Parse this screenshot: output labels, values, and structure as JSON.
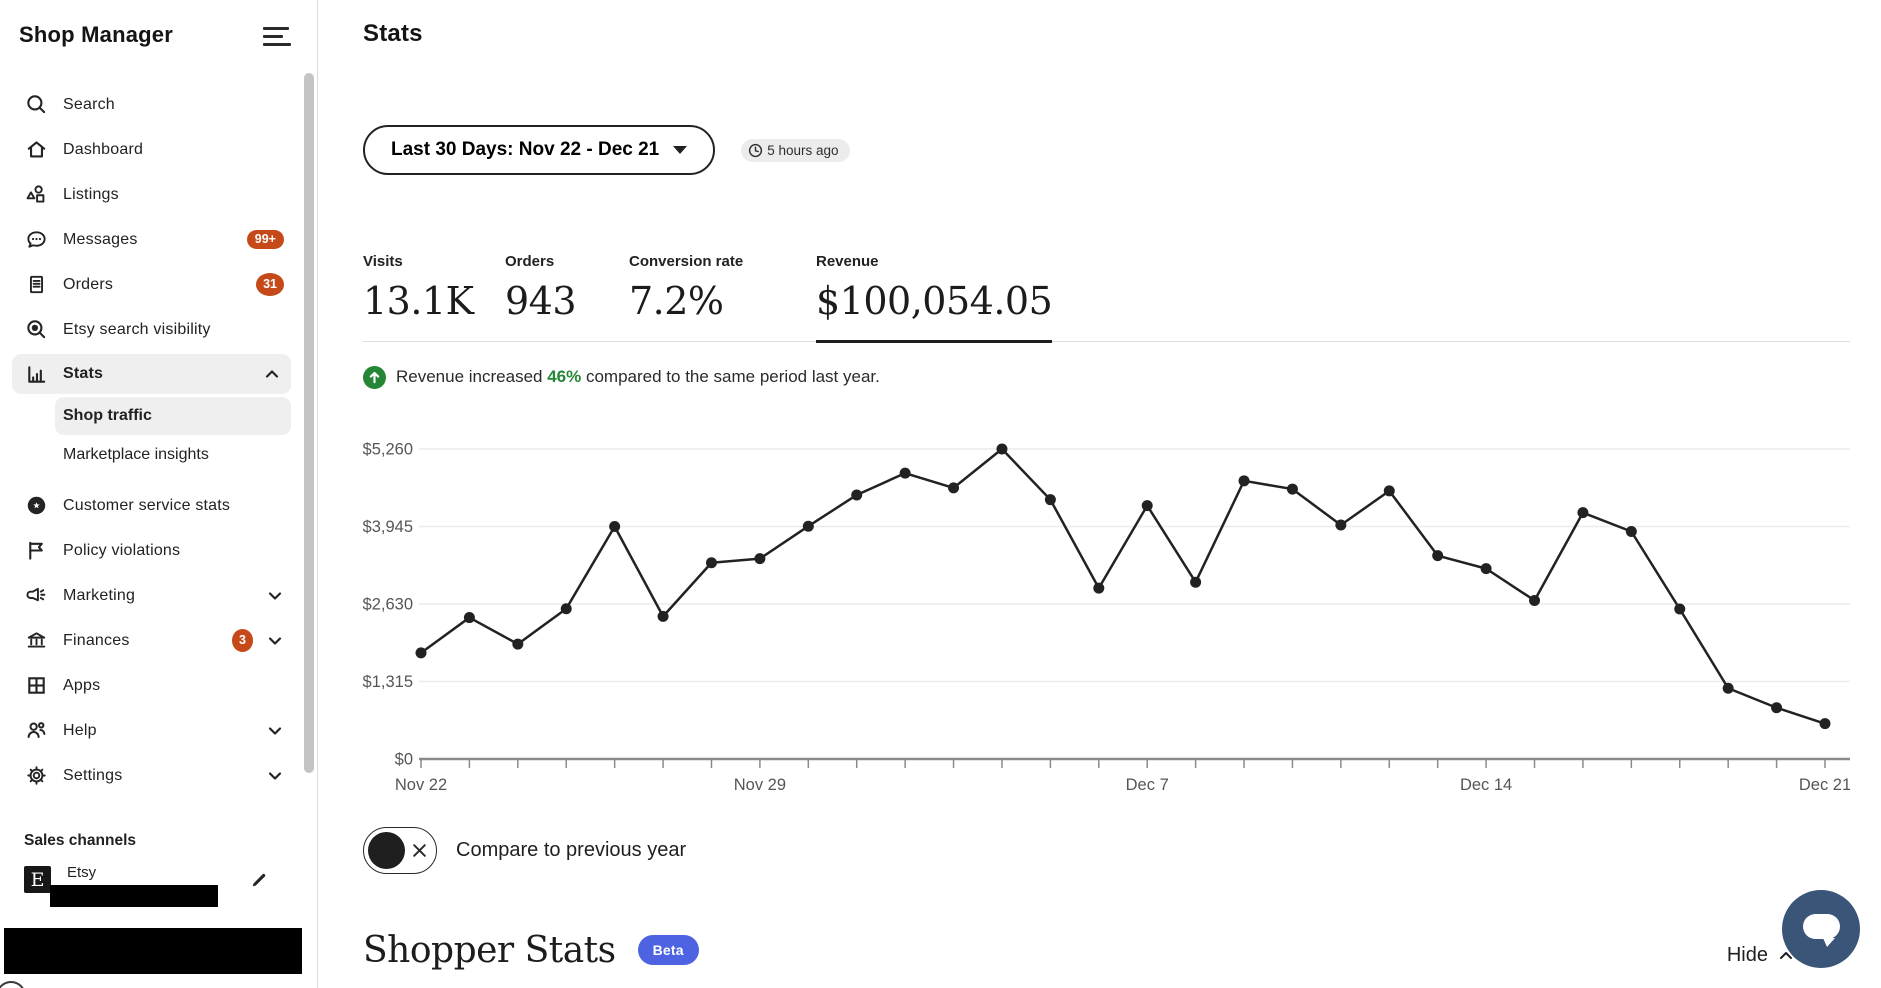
{
  "app": {
    "title": "Shop Manager"
  },
  "header": {
    "page_title": "Stats",
    "date_range": "Last 30 Days: Nov 22 - Dec 21",
    "last_updated": "5 hours ago"
  },
  "sidebar": {
    "items": [
      {
        "label": "Search",
        "icon": "search-icon"
      },
      {
        "label": "Dashboard",
        "icon": "home-icon"
      },
      {
        "label": "Listings",
        "icon": "shapes-icon"
      },
      {
        "label": "Messages",
        "icon": "chat-bubble-icon",
        "badge": "99+"
      },
      {
        "label": "Orders",
        "icon": "document-icon",
        "badge": "31"
      },
      {
        "label": "Etsy search visibility",
        "icon": "search-visibility-icon"
      },
      {
        "label": "Stats",
        "icon": "bar-chart-icon",
        "expanded": true
      },
      {
        "label": "Customer service stats",
        "icon": "badge-star-icon"
      },
      {
        "label": "Policy violations",
        "icon": "flag-icon"
      },
      {
        "label": "Marketing",
        "icon": "megaphone-icon",
        "chevron": "down"
      },
      {
        "label": "Finances",
        "icon": "bank-icon",
        "badge": "3",
        "chevron": "down"
      },
      {
        "label": "Apps",
        "icon": "grid-icon"
      },
      {
        "label": "Help",
        "icon": "people-icon",
        "chevron": "down"
      },
      {
        "label": "Settings",
        "icon": "gear-icon",
        "chevron": "down"
      }
    ],
    "stats_subitems": [
      {
        "label": "Shop traffic",
        "selected": true
      },
      {
        "label": "Marketplace insights",
        "selected": false
      }
    ],
    "sales_channels": {
      "heading": "Sales channels",
      "channel": "Etsy",
      "logo_letter": "E"
    }
  },
  "metrics": [
    {
      "label": "Visits",
      "value": "13.1K",
      "selected": false
    },
    {
      "label": "Orders",
      "value": "943",
      "selected": false
    },
    {
      "label": "Conversion rate",
      "value": "7.2%",
      "selected": false
    },
    {
      "label": "Revenue",
      "value": "$100,054.05",
      "selected": true
    }
  ],
  "insight": {
    "prefix": "Revenue increased ",
    "highlight": "46%",
    "suffix": " compared to the same period last year."
  },
  "chart_data": {
    "type": "line",
    "series_name": "Revenue",
    "x": [
      "Nov 22",
      "Nov 23",
      "Nov 24",
      "Nov 25",
      "Nov 26",
      "Nov 27",
      "Nov 28",
      "Nov 29",
      "Nov 30",
      "Dec 1",
      "Dec 2",
      "Dec 3",
      "Dec 4",
      "Dec 5",
      "Dec 6",
      "Dec 7",
      "Dec 8",
      "Dec 9",
      "Dec 10",
      "Dec 11",
      "Dec 12",
      "Dec 13",
      "Dec 14",
      "Dec 15",
      "Dec 16",
      "Dec 17",
      "Dec 18",
      "Dec 19",
      "Dec 20",
      "Dec 21"
    ],
    "values": [
      1800,
      2400,
      1950,
      2550,
      3945,
      2420,
      3330,
      3400,
      3950,
      4480,
      4850,
      4600,
      5260,
      4400,
      2900,
      4300,
      3000,
      4720,
      4580,
      3970,
      4550,
      3450,
      3230,
      2690,
      4180,
      3860,
      2545,
      1200,
      870,
      600
    ],
    "ylim": [
      0,
      5260
    ],
    "yticks": [
      {
        "value": 0,
        "label": "$0"
      },
      {
        "value": 1315,
        "label": "$1,315"
      },
      {
        "value": 2630,
        "label": "$2,630"
      },
      {
        "value": 3945,
        "label": "$3,945"
      },
      {
        "value": 5260,
        "label": "$5,260"
      }
    ],
    "xtick_indices": [
      0,
      7,
      15,
      22,
      29
    ],
    "xlabel": "",
    "ylabel": "",
    "grid": true,
    "legend": false,
    "line_color": "#222222",
    "point_style": "filled-dot"
  },
  "compare_toggle": {
    "label": "Compare to previous year",
    "state": "off"
  },
  "shopper_stats": {
    "title": "Shopper Stats",
    "badge": "Beta",
    "hide_label": "Hide"
  },
  "colors": {
    "notification_badge": "#C64A19",
    "beta_badge": "#4D63E2",
    "chat_button": "#3A5577",
    "positive_green": "#258635",
    "chart_line": "#222222"
  }
}
